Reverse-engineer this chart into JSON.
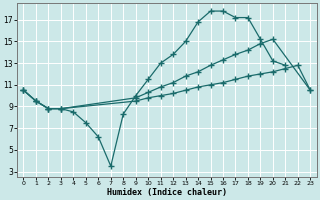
{
  "xlabel": "Humidex (Indice chaleur)",
  "bg_color": "#cce8e8",
  "grid_color": "#ffffff",
  "line_color": "#1a6b6b",
  "xlim": [
    -0.5,
    23.5
  ],
  "ylim": [
    2.5,
    18.5
  ],
  "yticks": [
    3,
    5,
    7,
    9,
    11,
    13,
    15,
    17
  ],
  "xticks": [
    0,
    1,
    2,
    3,
    4,
    5,
    6,
    7,
    8,
    9,
    10,
    11,
    12,
    13,
    14,
    15,
    16,
    17,
    18,
    19,
    20,
    21,
    22,
    23
  ],
  "line1_x": [
    0,
    1,
    2,
    3,
    4,
    5,
    6,
    7,
    8,
    9,
    10,
    11,
    12,
    13,
    14,
    15,
    16,
    17,
    18,
    19,
    20,
    21
  ],
  "line1_y": [
    10.5,
    9.5,
    8.8,
    8.8,
    8.5,
    7.5,
    6.2,
    3.5,
    8.3,
    10.0,
    11.5,
    13.0,
    13.8,
    15.0,
    16.8,
    17.8,
    17.8,
    17.2,
    17.2,
    15.2,
    13.2,
    12.8
  ],
  "line2_x": [
    0,
    1,
    2,
    3,
    9,
    10,
    11,
    12,
    13,
    14,
    15,
    16,
    17,
    18,
    19,
    20,
    23
  ],
  "line2_y": [
    10.5,
    9.5,
    8.8,
    8.8,
    9.8,
    10.3,
    10.8,
    11.2,
    11.8,
    12.2,
    12.8,
    13.3,
    13.8,
    14.2,
    14.8,
    15.2,
    10.5
  ],
  "line3_x": [
    0,
    1,
    2,
    3,
    9,
    10,
    11,
    12,
    13,
    14,
    15,
    16,
    17,
    18,
    19,
    20,
    21,
    22,
    23
  ],
  "line3_y": [
    10.5,
    9.5,
    8.8,
    8.8,
    9.5,
    9.8,
    10.0,
    10.2,
    10.5,
    10.8,
    11.0,
    11.2,
    11.5,
    11.8,
    12.0,
    12.2,
    12.5,
    12.8,
    10.5
  ]
}
